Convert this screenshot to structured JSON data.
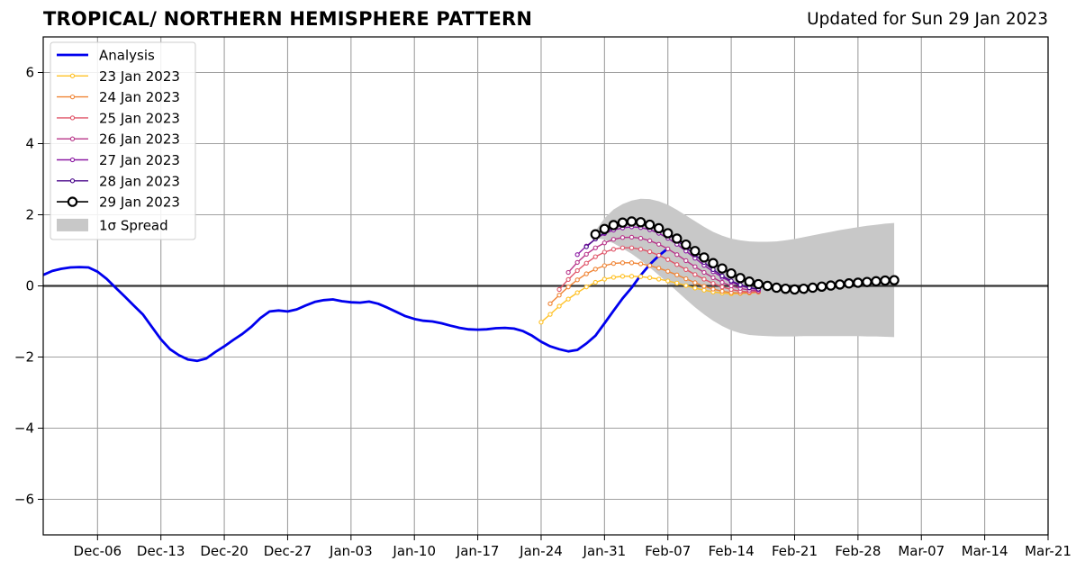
{
  "chart_title": "TROPICAL/ NORTHERN HEMISPHERE PATTERN",
  "chart_subtitle": "Updated for Sun 29 Jan 2023",
  "chart_data": {
    "type": "line",
    "title": "TROPICAL/ NORTHERN HEMISPHERE PATTERN",
    "subtitle": "Updated for Sun 29 Jan 2023",
    "xlim": [
      "2022-11-30",
      "2023-03-21"
    ],
    "ylim": [
      -7,
      7
    ],
    "grid": true,
    "legend_position": "upper-left",
    "x_ticks": [
      {
        "date": "2022-12-06",
        "label": "Dec-06"
      },
      {
        "date": "2022-12-13",
        "label": "Dec-13"
      },
      {
        "date": "2022-12-20",
        "label": "Dec-20"
      },
      {
        "date": "2022-12-27",
        "label": "Dec-27"
      },
      {
        "date": "2023-01-03",
        "label": "Jan-03"
      },
      {
        "date": "2023-01-10",
        "label": "Jan-10"
      },
      {
        "date": "2023-01-17",
        "label": "Jan-17"
      },
      {
        "date": "2023-01-24",
        "label": "Jan-24"
      },
      {
        "date": "2023-01-31",
        "label": "Jan-31"
      },
      {
        "date": "2023-02-07",
        "label": "Feb-07"
      },
      {
        "date": "2023-02-14",
        "label": "Feb-14"
      },
      {
        "date": "2023-02-21",
        "label": "Feb-21"
      },
      {
        "date": "2023-02-28",
        "label": "Feb-28"
      },
      {
        "date": "2023-03-07",
        "label": "Mar-07"
      },
      {
        "date": "2023-03-14",
        "label": "Mar-14"
      },
      {
        "date": "2023-03-21",
        "label": "Mar-21"
      }
    ],
    "y_ticks": [
      {
        "value": 6,
        "label": "6"
      },
      {
        "value": 4,
        "label": "4"
      },
      {
        "value": 2,
        "label": "2"
      },
      {
        "value": 0,
        "label": "0"
      },
      {
        "value": -2,
        "label": "−2"
      },
      {
        "value": -4,
        "label": "−4"
      },
      {
        "value": -6,
        "label": "−6"
      }
    ],
    "analysis": {
      "name": "Analysis",
      "color": "#0000ee",
      "start_date": "2022-11-30",
      "values": [
        0.31,
        0.42,
        0.48,
        0.52,
        0.53,
        0.52,
        0.4,
        0.2,
        -0.05,
        -0.3,
        -0.55,
        -0.8,
        -1.15,
        -1.5,
        -1.78,
        -1.95,
        -2.07,
        -2.11,
        -2.04,
        -1.86,
        -1.7,
        -1.52,
        -1.35,
        -1.15,
        -0.9,
        -0.72,
        -0.69,
        -0.72,
        -0.66,
        -0.55,
        -0.45,
        -0.4,
        -0.38,
        -0.43,
        -0.46,
        -0.47,
        -0.44,
        -0.5,
        -0.61,
        -0.73,
        -0.85,
        -0.93,
        -0.98,
        -1.0,
        -1.05,
        -1.12,
        -1.18,
        -1.22,
        -1.23,
        -1.22,
        -1.19,
        -1.18,
        -1.2,
        -1.27,
        -1.4,
        -1.57,
        -1.7,
        -1.78,
        -1.84,
        -1.8,
        -1.62,
        -1.4,
        -1.05,
        -0.7,
        -0.35,
        -0.05,
        0.3,
        0.6,
        0.85,
        1.05
      ]
    },
    "forecasts": [
      {
        "name": "23 Jan 2023",
        "color": "#ffc125",
        "start_date": "2023-01-24",
        "values": [
          -1.02,
          -0.8,
          -0.57,
          -0.37,
          -0.19,
          -0.03,
          0.1,
          0.19,
          0.24,
          0.27,
          0.27,
          0.26,
          0.23,
          0.19,
          0.14,
          0.08,
          0.01,
          -0.06,
          -0.12,
          -0.17,
          -0.2,
          -0.22,
          -0.21,
          -0.2,
          -0.18
        ]
      },
      {
        "name": "24 Jan 2023",
        "color": "#f08536",
        "start_date": "2023-01-25",
        "values": [
          -0.5,
          -0.26,
          -0.03,
          0.17,
          0.34,
          0.47,
          0.57,
          0.63,
          0.65,
          0.65,
          0.62,
          0.57,
          0.5,
          0.41,
          0.31,
          0.2,
          0.09,
          -0.01,
          -0.09,
          -0.15,
          -0.19,
          -0.2,
          -0.19,
          -0.17
        ]
      },
      {
        "name": "25 Jan 2023",
        "color": "#e0566a",
        "start_date": "2023-01-26",
        "values": [
          -0.1,
          0.18,
          0.43,
          0.64,
          0.82,
          0.95,
          1.03,
          1.07,
          1.07,
          1.03,
          0.96,
          0.86,
          0.74,
          0.6,
          0.46,
          0.32,
          0.19,
          0.07,
          -0.03,
          -0.1,
          -0.15,
          -0.17,
          -0.16
        ]
      },
      {
        "name": "26 Jan 2023",
        "color": "#b8368a",
        "start_date": "2023-01-27",
        "values": [
          0.38,
          0.66,
          0.89,
          1.07,
          1.21,
          1.31,
          1.36,
          1.37,
          1.34,
          1.27,
          1.17,
          1.04,
          0.88,
          0.71,
          0.54,
          0.38,
          0.23,
          0.1,
          0.0,
          -0.07,
          -0.12,
          -0.14
        ]
      },
      {
        "name": "27 Jan 2023",
        "color": "#8c1aa3",
        "start_date": "2023-01-28",
        "values": [
          0.88,
          1.12,
          1.32,
          1.47,
          1.57,
          1.63,
          1.66,
          1.64,
          1.58,
          1.48,
          1.34,
          1.17,
          0.98,
          0.78,
          0.58,
          0.4,
          0.24,
          0.11,
          0.01,
          -0.06,
          -0.1
        ]
      },
      {
        "name": "28 Jan 2023",
        "color": "#4b0a8c",
        "start_date": "2023-01-29",
        "values": [
          1.1,
          1.32,
          1.5,
          1.63,
          1.72,
          1.76,
          1.75,
          1.69,
          1.59,
          1.45,
          1.28,
          1.08,
          0.87,
          0.66,
          0.46,
          0.28,
          0.14,
          0.03,
          -0.05,
          -0.09
        ]
      }
    ],
    "latest": {
      "name": "29 Jan 2023",
      "color": "#000000",
      "marker_fill": "#ffffff",
      "start_date": "2023-01-30",
      "values": [
        1.45,
        1.6,
        1.71,
        1.78,
        1.81,
        1.79,
        1.72,
        1.62,
        1.48,
        1.33,
        1.16,
        0.98,
        0.8,
        0.64,
        0.49,
        0.35,
        0.22,
        0.12,
        0.05,
        0.0,
        -0.05,
        -0.08,
        -0.1,
        -0.08,
        -0.05,
        -0.02,
        0.01,
        0.04,
        0.07,
        0.09,
        0.11,
        0.13,
        0.15,
        0.16
      ]
    },
    "spread": {
      "name": "1σ Spread",
      "color": "#c8c8c8",
      "start_date": "2023-01-30",
      "upper": [
        1.55,
        1.9,
        2.15,
        2.3,
        2.4,
        2.45,
        2.44,
        2.38,
        2.28,
        2.14,
        1.98,
        1.82,
        1.66,
        1.52,
        1.41,
        1.33,
        1.28,
        1.25,
        1.24,
        1.24,
        1.25,
        1.28,
        1.32,
        1.37,
        1.42,
        1.47,
        1.52,
        1.57,
        1.61,
        1.65,
        1.69,
        1.72,
        1.75,
        1.77
      ],
      "lower": [
        1.35,
        1.3,
        1.2,
        1.05,
        0.9,
        0.72,
        0.52,
        0.3,
        0.08,
        -0.15,
        -0.38,
        -0.6,
        -0.8,
        -0.98,
        -1.13,
        -1.25,
        -1.33,
        -1.38,
        -1.4,
        -1.41,
        -1.42,
        -1.42,
        -1.42,
        -1.41,
        -1.41,
        -1.41,
        -1.41,
        -1.41,
        -1.41,
        -1.41,
        -1.42,
        -1.42,
        -1.43,
        -1.44
      ]
    }
  }
}
